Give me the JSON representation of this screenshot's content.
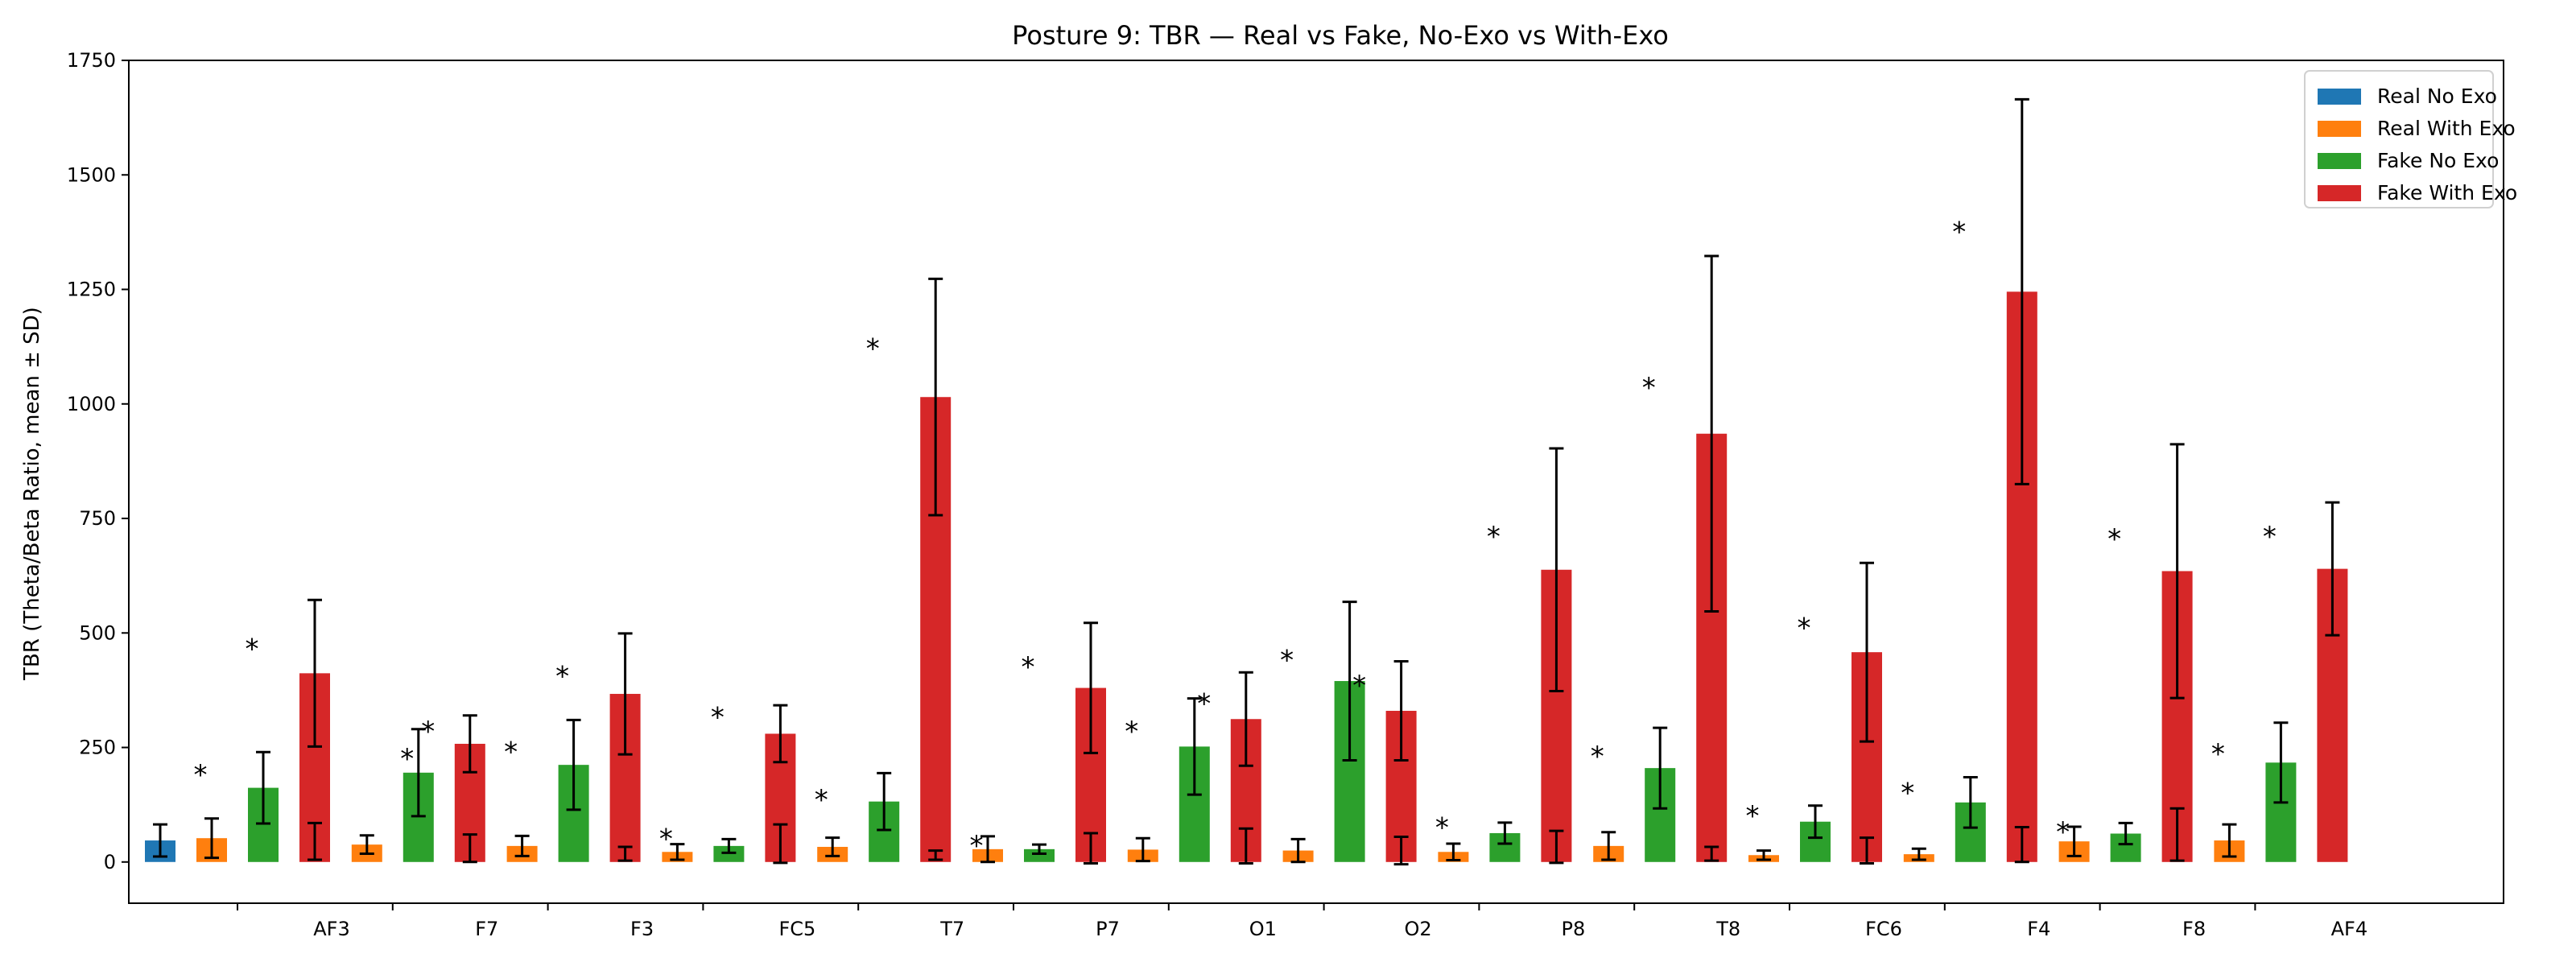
{
  "chart_data": {
    "type": "bar",
    "title": "Posture 9: TBR — Real vs Fake, No-Exo vs With-Exo",
    "xlabel": "",
    "ylabel": "TBR (Theta/Beta Ratio, mean ± SD)",
    "ylim": [
      -90,
      1750
    ],
    "yticks": [
      0,
      250,
      500,
      750,
      1000,
      1250,
      1500,
      1750
    ],
    "legend_position": "top-right",
    "grid": false,
    "categories": [
      "AF3",
      "F7",
      "F3",
      "FC5",
      "T7",
      "P7",
      "O1",
      "O2",
      "P8",
      "T8",
      "FC6",
      "F4",
      "F8",
      "AF4"
    ],
    "series": [
      {
        "name": "Real No Exo",
        "color": "#1f77b4",
        "values": [
          47,
          null,
          null,
          null,
          null,
          null,
          null,
          null,
          null,
          null,
          null,
          null,
          null,
          null
        ],
        "sd": [
          35,
          null,
          null,
          null,
          null,
          null,
          null,
          null,
          null,
          null,
          null,
          null,
          null,
          null
        ]
      },
      {
        "name": "Real With Exo",
        "color": "#ff7f0e",
        "values": [
          52,
          38,
          35,
          22,
          33,
          28,
          27,
          25,
          22,
          35,
          15,
          17,
          45,
          47
        ],
        "sd": [
          43,
          20,
          22,
          17,
          20,
          28,
          25,
          25,
          18,
          30,
          10,
          12,
          32,
          35
        ]
      },
      {
        "name": "Fake No Exo",
        "color": "#2ca02c",
        "values": [
          162,
          195,
          212,
          35,
          132,
          28,
          252,
          395,
          63,
          205,
          88,
          130,
          62,
          217
        ],
        "sd": [
          78,
          95,
          98,
          15,
          62,
          10,
          105,
          173,
          23,
          88,
          35,
          55,
          23,
          87
        ]
      },
      {
        "name": "Fake With Exo",
        "color": "#d62728",
        "values": [
          412,
          258,
          367,
          280,
          1015,
          380,
          312,
          330,
          638,
          935,
          458,
          1245,
          635,
          640
        ],
        "sd": [
          160,
          62,
          132,
          62,
          258,
          142,
          102,
          108,
          265,
          388,
          195,
          420,
          277,
          145
        ]
      }
    ],
    "low_whiskers": [
      {
        "category": "AF3",
        "series": "Fake With Exo",
        "center": 45,
        "sd": 40
      },
      {
        "category": "F7",
        "series": "Fake With Exo",
        "center": 30,
        "sd": 30
      },
      {
        "category": "F3",
        "series": "Fake With Exo",
        "center": 18,
        "sd": 15
      },
      {
        "category": "FC5",
        "series": "Fake With Exo",
        "center": 40,
        "sd": 42
      },
      {
        "category": "T7",
        "series": "Fake With Exo",
        "center": 15,
        "sd": 10
      },
      {
        "category": "P7",
        "series": "Fake With Exo",
        "center": 30,
        "sd": 33
      },
      {
        "category": "O1",
        "series": "Fake With Exo",
        "center": 35,
        "sd": 38
      },
      {
        "category": "O2",
        "series": "Fake With Exo",
        "center": 25,
        "sd": 30
      },
      {
        "category": "P8",
        "series": "Fake With Exo",
        "center": 33,
        "sd": 35
      },
      {
        "category": "T8",
        "series": "Fake With Exo",
        "center": 18,
        "sd": 15
      },
      {
        "category": "F4",
        "series": "Fake With Exo",
        "center": 38,
        "sd": 38
      },
      {
        "category": "FC6",
        "series": "Fake With Exo",
        "center": 25,
        "sd": 28
      },
      {
        "category": "F8",
        "series": "Fake With Exo",
        "center": 60,
        "sd": 57
      }
    ],
    "annotations": [
      {
        "text": "*",
        "category": "AF3",
        "series": "Real With Exo",
        "y": 195
      },
      {
        "text": "*",
        "category": "AF3",
        "series": "Fake No Exo",
        "y": 470
      },
      {
        "text": "*",
        "category": "F7",
        "series": "Fake No Exo",
        "y": 230
      },
      {
        "text": "*",
        "category": "F7",
        "series": "Fake No Exo",
        "y": 290,
        "offset": 1
      },
      {
        "text": "*",
        "category": "F3",
        "series": "Real With Exo",
        "y": 245
      },
      {
        "text": "*",
        "category": "F3",
        "series": "Fake No Exo",
        "y": 410
      },
      {
        "text": "*",
        "category": "FC5",
        "series": "Real With Exo",
        "y": 55
      },
      {
        "text": "*",
        "category": "FC5",
        "series": "Fake No Exo",
        "y": 320
      },
      {
        "text": "*",
        "category": "T7",
        "series": "Real With Exo",
        "y": 140
      },
      {
        "text": "*",
        "category": "T7",
        "series": "Fake No Exo",
        "y": 1125
      },
      {
        "text": "*",
        "category": "P7",
        "series": "Real With Exo",
        "y": 40
      },
      {
        "text": "*",
        "category": "P7",
        "series": "Fake No Exo",
        "y": 430
      },
      {
        "text": "*",
        "category": "O1",
        "series": "Real With Exo",
        "y": 290
      },
      {
        "text": "*",
        "category": "O1",
        "series": "Fake No Exo",
        "y": 350,
        "offset": 1
      },
      {
        "text": "*",
        "category": "O2",
        "series": "Real With Exo",
        "y": 445
      },
      {
        "text": "*",
        "category": "O2",
        "series": "Fake No Exo",
        "y": 390,
        "offset": 1
      },
      {
        "text": "*",
        "category": "P8",
        "series": "Real With Exo",
        "y": 80
      },
      {
        "text": "*",
        "category": "P8",
        "series": "Fake No Exo",
        "y": 715
      },
      {
        "text": "*",
        "category": "T8",
        "series": "Real With Exo",
        "y": 235
      },
      {
        "text": "*",
        "category": "T8",
        "series": "Fake No Exo",
        "y": 1040
      },
      {
        "text": "*",
        "category": "FC6",
        "series": "Real With Exo",
        "y": 105
      },
      {
        "text": "*",
        "category": "FC6",
        "series": "Fake No Exo",
        "y": 515
      },
      {
        "text": "*",
        "category": "F4",
        "series": "Real With Exo",
        "y": 155
      },
      {
        "text": "*",
        "category": "F4",
        "series": "Fake No Exo",
        "y": 1380
      },
      {
        "text": "*",
        "category": "F8",
        "series": "Real With Exo",
        "y": 70
      },
      {
        "text": "*",
        "category": "F8",
        "series": "Fake No Exo",
        "y": 710
      },
      {
        "text": "*",
        "category": "AF4",
        "series": "Real With Exo",
        "y": 240
      },
      {
        "text": "*",
        "category": "AF4",
        "series": "Fake No Exo",
        "y": 715
      }
    ]
  }
}
